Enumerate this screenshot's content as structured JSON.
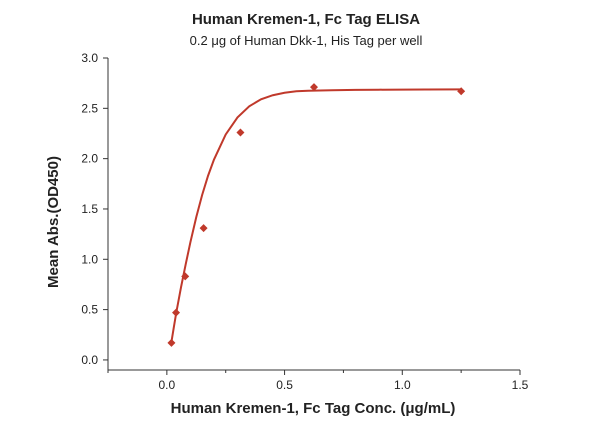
{
  "chart_data": {
    "type": "scatter",
    "title": "Human Kremen-1, Fc Tag ELISA",
    "subtitle": "0.2 μg of Human Dkk-1, His Tag per well",
    "xlabel": "Human Kremen-1, Fc Tag Conc. (μg/mL)",
    "ylabel": "Mean Abs.(OD450)",
    "xlim": [
      -0.25,
      1.5
    ],
    "ylim": [
      -0.1,
      3.0
    ],
    "x_ticks": [
      0.0,
      0.5,
      1.0,
      1.5
    ],
    "x_tick_labels": [
      "0.0",
      "0.5",
      "1.0",
      "1.5"
    ],
    "y_ticks": [
      0.0,
      0.5,
      1.0,
      1.5,
      2.0,
      2.5,
      3.0
    ],
    "y_tick_labels": [
      "0.0",
      "0.5",
      "1.0",
      "1.5",
      "2.0",
      "2.5",
      "3.0"
    ],
    "grid": false,
    "legend": "none",
    "marker": "diamond",
    "color": "#c0392b",
    "series": [
      {
        "x": [
          0.0195,
          0.039,
          0.078,
          0.156,
          0.3125,
          0.625,
          1.25
        ],
        "y": [
          0.17,
          0.47,
          0.83,
          1.31,
          2.26,
          2.71,
          2.67
        ]
      }
    ],
    "fit_curve": {
      "type": "sigmoid-fit",
      "x": [
        0.0195,
        0.03,
        0.04,
        0.06,
        0.08,
        0.1,
        0.125,
        0.15,
        0.175,
        0.2,
        0.25,
        0.3,
        0.35,
        0.4,
        0.45,
        0.5,
        0.55,
        0.6,
        0.7,
        0.8,
        0.9,
        1.0,
        1.1,
        1.25
      ],
      "y": [
        0.18,
        0.33,
        0.47,
        0.72,
        0.95,
        1.17,
        1.42,
        1.64,
        1.83,
        1.99,
        2.24,
        2.41,
        2.52,
        2.59,
        2.63,
        2.655,
        2.67,
        2.675,
        2.68,
        2.683,
        2.685,
        2.686,
        2.687,
        2.688
      ]
    }
  }
}
